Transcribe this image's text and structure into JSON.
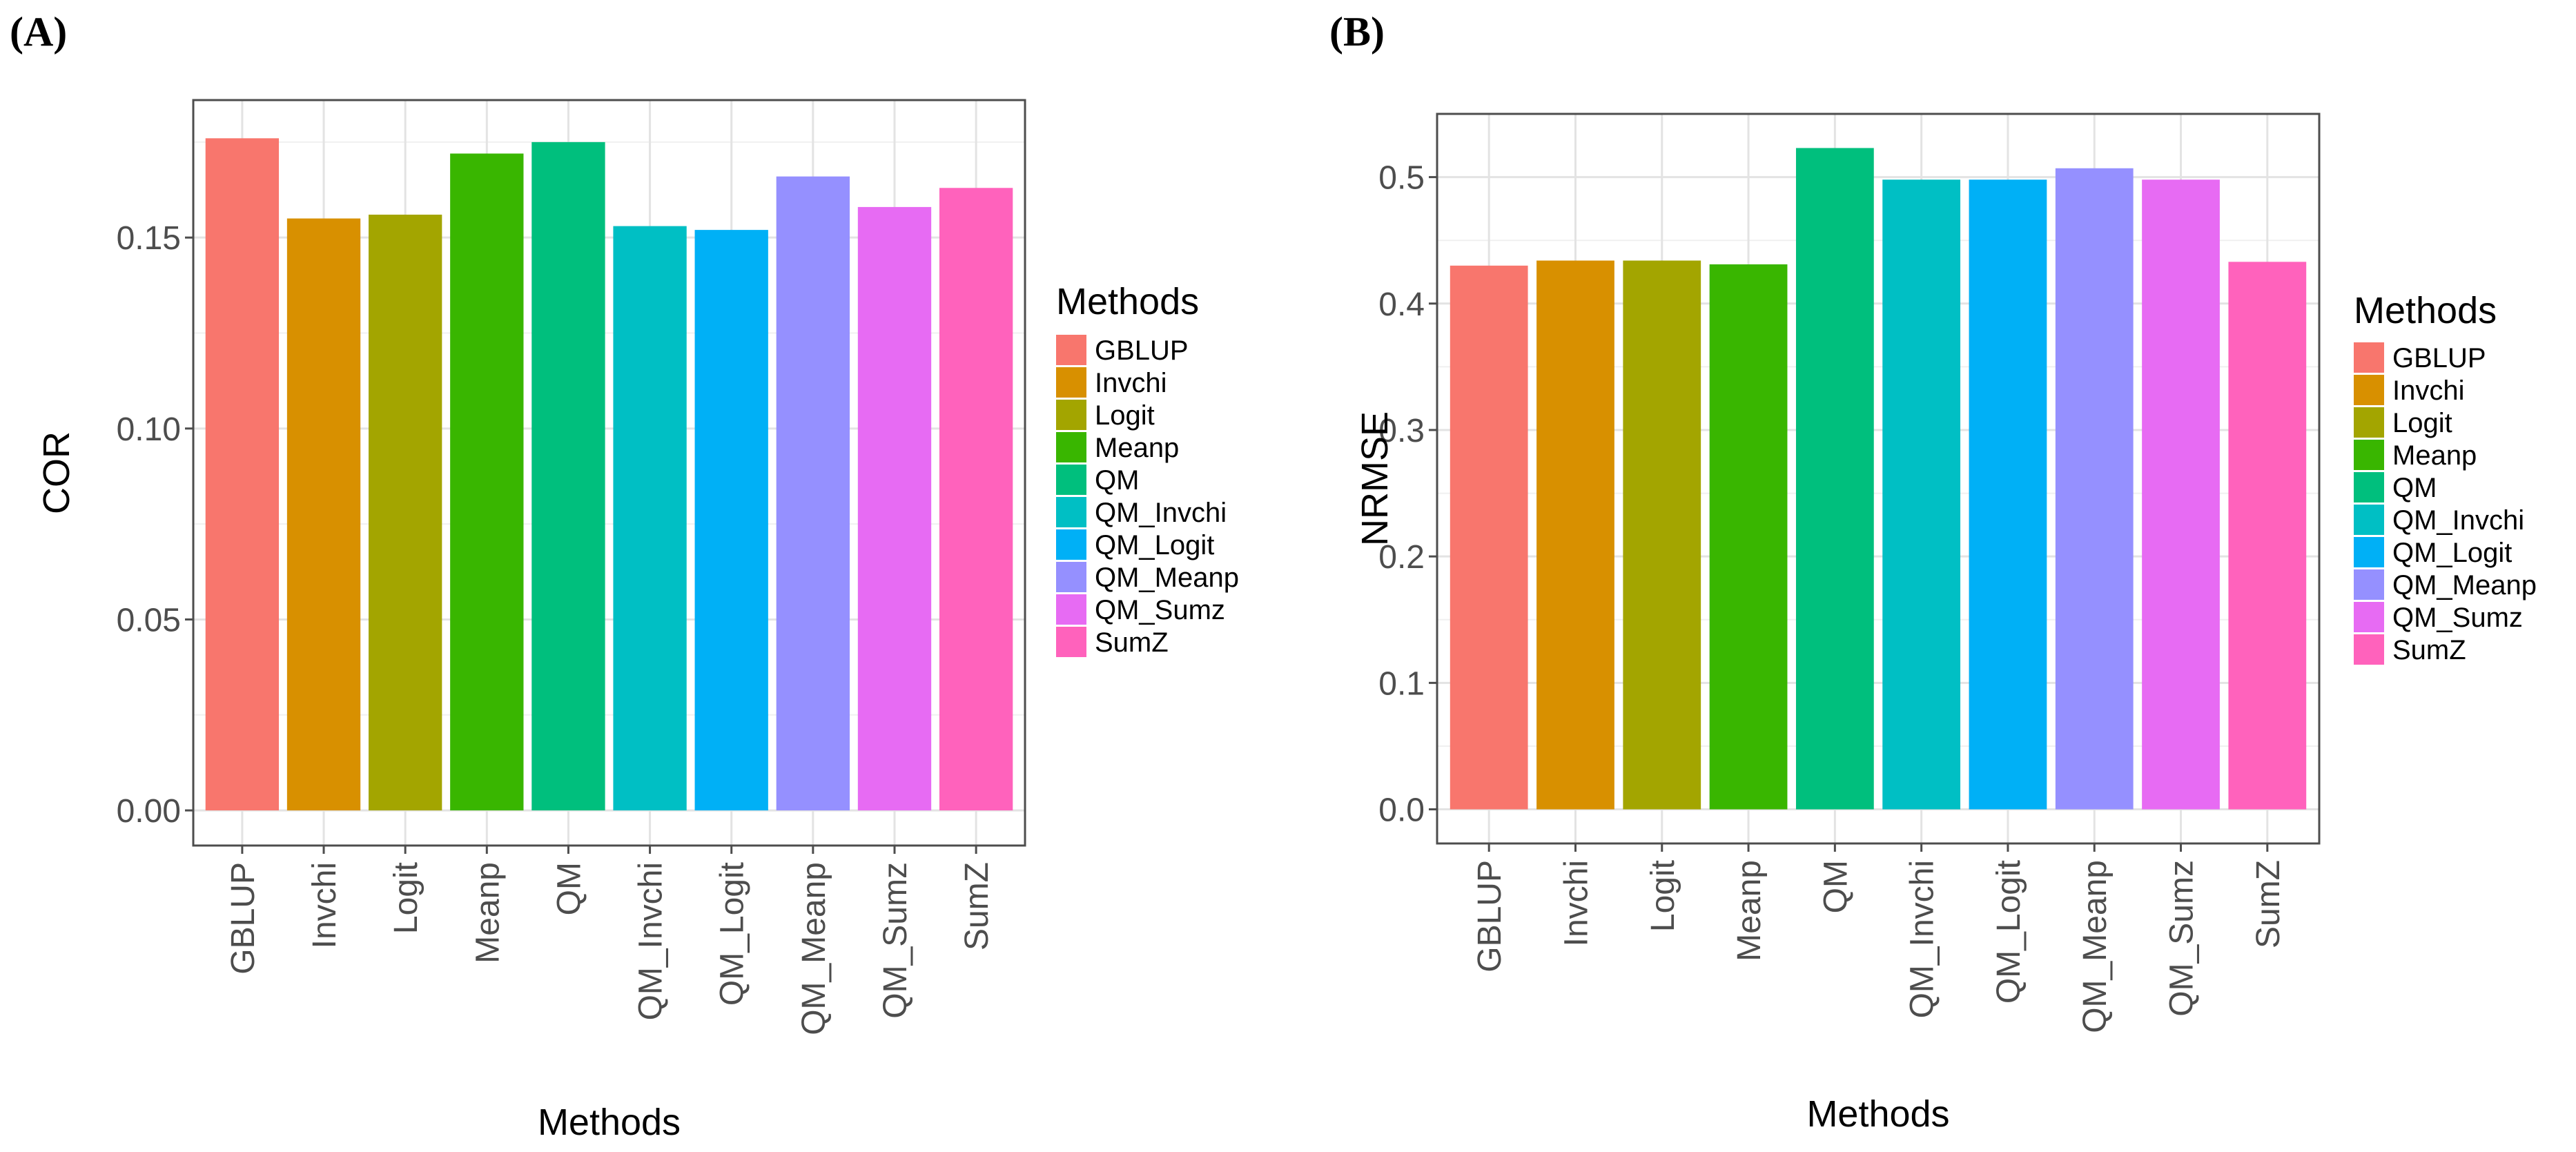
{
  "panel_labels": [
    "(A)",
    "(B)"
  ],
  "colors": [
    "#F8766D",
    "#D89000",
    "#A3A500",
    "#39B600",
    "#00BF7D",
    "#00BFC4",
    "#00B0F6",
    "#9590FF",
    "#E76BF3",
    "#FF62BC"
  ],
  "chart_data": [
    {
      "type": "bar",
      "panel": "(A)",
      "categories": [
        "GBLUP",
        "Invchi",
        "Logit",
        "Meanp",
        "QM",
        "QM_Invchi",
        "QM_Logit",
        "QM_Meanp",
        "QM_Sumz",
        "SumZ"
      ],
      "values": [
        0.176,
        0.155,
        0.156,
        0.172,
        0.175,
        0.153,
        0.152,
        0.166,
        0.158,
        0.163
      ],
      "xlabel": "Methods",
      "ylabel": "COR",
      "ylim": [
        -0.0092,
        0.186
      ],
      "yticks": [
        0.0,
        0.05,
        0.1,
        0.15
      ],
      "ytick_labels": [
        "0.00",
        "0.05",
        "0.10",
        "0.15"
      ],
      "grid": true,
      "legend_title": "Methods",
      "legend_entries": [
        "GBLUP",
        "Invchi",
        "Logit",
        "Meanp",
        "QM",
        "QM_Invchi",
        "QM_Logit",
        "QM_Meanp",
        "QM_Sumz",
        "SumZ"
      ],
      "legend_position": "right"
    },
    {
      "type": "bar",
      "panel": "(B)",
      "categories": [
        "GBLUP",
        "Invchi",
        "Logit",
        "Meanp",
        "QM",
        "QM_Invchi",
        "QM_Logit",
        "QM_Meanp",
        "QM_Sumz",
        "SumZ"
      ],
      "values": [
        0.43,
        0.434,
        0.434,
        0.431,
        0.523,
        0.498,
        0.498,
        0.507,
        0.498,
        0.433
      ],
      "xlabel": "Methods",
      "ylabel": "NRMSE",
      "ylim": [
        -0.027,
        0.55
      ],
      "yticks": [
        0.0,
        0.1,
        0.2,
        0.3,
        0.4,
        0.5
      ],
      "ytick_labels": [
        "0.0",
        "0.1",
        "0.2",
        "0.3",
        "0.4",
        "0.5"
      ],
      "grid": true,
      "legend_title": "Methods",
      "legend_entries": [
        "GBLUP",
        "Invchi",
        "Logit",
        "Meanp",
        "QM",
        "QM_Invchi",
        "QM_Logit",
        "QM_Meanp",
        "QM_Sumz",
        "SumZ"
      ],
      "legend_position": "right"
    }
  ]
}
